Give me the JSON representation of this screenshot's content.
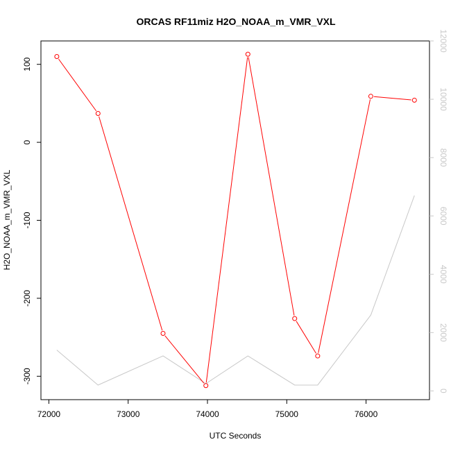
{
  "chart_data": {
    "type": "line",
    "title": "ORCAS RF11miz H2O_NOAA_m_VMR_VXL",
    "xlabel": "UTC Seconds",
    "ylabel": "H2O_NOAA_m_VMR_VXL",
    "xlim": [
      71900,
      76800
    ],
    "ylim": [
      -330,
      130
    ],
    "y2lim": [
      -300,
      12000
    ],
    "x_ticks": [
      72000,
      73000,
      74000,
      75000,
      76000
    ],
    "y_ticks": [
      100,
      0,
      -100,
      -200,
      -300
    ],
    "y2_ticks": [
      0,
      2000,
      4000,
      6000,
      8000,
      10000,
      12000
    ],
    "grid": false,
    "colors": {
      "primary": "#ff0000",
      "secondary": "#c8c8c8",
      "axis": "#000000"
    },
    "series": [
      {
        "axis": "left",
        "style": "line+points",
        "x": [
          72100,
          72620,
          73440,
          73980,
          74510,
          75100,
          75390,
          76060,
          76610
        ],
        "y": [
          110,
          37,
          -245,
          -312,
          113,
          -226,
          -274,
          59,
          54
        ]
      },
      {
        "axis": "right",
        "style": "line",
        "x": [
          72100,
          72620,
          73440,
          73980,
          74510,
          75100,
          75390,
          76060,
          76610
        ],
        "y": [
          1400,
          200,
          1200,
          250,
          1200,
          200,
          200,
          2600,
          6700
        ]
      }
    ]
  }
}
